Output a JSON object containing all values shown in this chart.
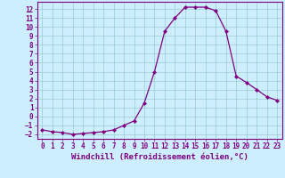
{
  "x": [
    0,
    1,
    2,
    3,
    4,
    5,
    6,
    7,
    8,
    9,
    10,
    11,
    12,
    13,
    14,
    15,
    16,
    17,
    18,
    19,
    20,
    21,
    22,
    23
  ],
  "y": [
    -1.5,
    -1.7,
    -1.8,
    -2.0,
    -1.9,
    -1.8,
    -1.7,
    -1.5,
    -1.0,
    -0.5,
    1.5,
    5.0,
    9.5,
    11.0,
    12.2,
    12.2,
    12.2,
    11.8,
    9.5,
    4.5,
    3.8,
    3.0,
    2.2,
    1.8
  ],
  "line_color": "#800080",
  "marker": "D",
  "marker_size": 2,
  "linewidth": 0.9,
  "xlabel": "Windchill (Refroidissement éolien,°C)",
  "xlim": [
    -0.5,
    23.5
  ],
  "ylim": [
    -2.5,
    12.8
  ],
  "yticks": [
    -2,
    -1,
    0,
    1,
    2,
    3,
    4,
    5,
    6,
    7,
    8,
    9,
    10,
    11,
    12
  ],
  "xticks": [
    0,
    1,
    2,
    3,
    4,
    5,
    6,
    7,
    8,
    9,
    10,
    11,
    12,
    13,
    14,
    15,
    16,
    17,
    18,
    19,
    20,
    21,
    22,
    23
  ],
  "bg_color": "#cceeff",
  "grid_color": "#99cccc",
  "line_border_color": "#800080",
  "xlabel_color": "#800080",
  "tick_color": "#800080",
  "xlabel_fontsize": 6.5,
  "tick_fontsize": 5.5
}
